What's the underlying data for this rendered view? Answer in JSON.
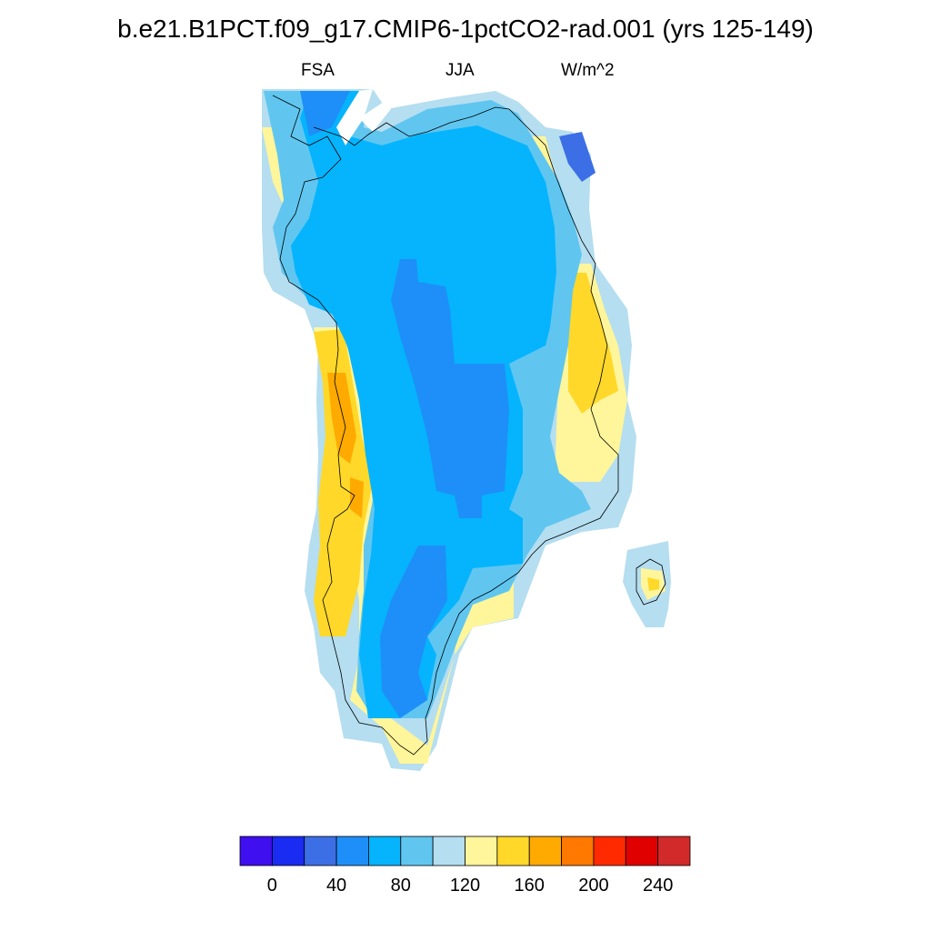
{
  "title": "b.e21.B1PCT.f09_g17.CMIP6-1pctCO2-rad.001 (yrs 125-149)",
  "subtitle": {
    "left": "FSA",
    "center": "JJA",
    "right": "W/m^2"
  },
  "colorbar": {
    "colors": [
      "#3f0ff0",
      "#1a2cf2",
      "#3c6ee6",
      "#1e8ff8",
      "#05b4fd",
      "#60c6f0",
      "#b5def0",
      "#fff59b",
      "#ffd829",
      "#ffaa00",
      "#ff7800",
      "#ff2a00",
      "#e00000",
      "#d22a2a"
    ],
    "tick_labels": [
      "0",
      "40",
      "80",
      "120",
      "160",
      "200",
      "240"
    ]
  }
}
